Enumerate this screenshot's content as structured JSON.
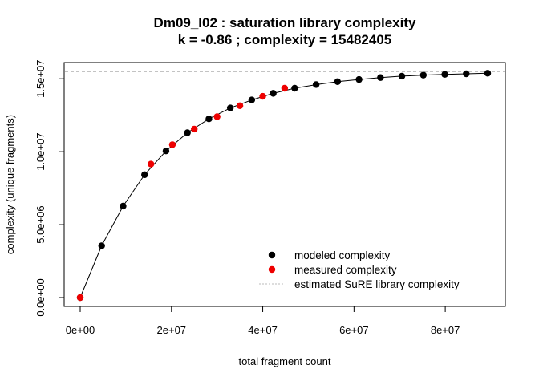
{
  "chart_data": {
    "type": "scatter",
    "title": "Dm09_I02 : saturation library complexity",
    "subtitle": "k = -0.86 ; complexity = 15482405",
    "xlabel": "total fragment count",
    "ylabel": "complexity (unique fragments)",
    "xlim": [
      0,
      90000000
    ],
    "ylim": [
      0,
      16000000
    ],
    "x_ticks": [
      {
        "value": 0,
        "label": "0e+00"
      },
      {
        "value": 20000000,
        "label": "2e+07"
      },
      {
        "value": 40000000,
        "label": "4e+07"
      },
      {
        "value": 60000000,
        "label": "6e+07"
      },
      {
        "value": 80000000,
        "label": "8e+07"
      }
    ],
    "y_ticks": [
      {
        "value": 0,
        "label": "0.0e+00"
      },
      {
        "value": 5000000,
        "label": "5.0e+06"
      },
      {
        "value": 10000000,
        "label": "1.0e+07"
      },
      {
        "value": 15000000,
        "label": "1.5e+07"
      }
    ],
    "grid": false,
    "legend_position": "bottom-right",
    "reference_line": {
      "name": "estimated SuRE library complexity",
      "y": 15482405,
      "color": "#bbbbbb",
      "style": "dotted"
    },
    "series": [
      {
        "name": "modeled complexity",
        "color": "#000000",
        "marker": "circle",
        "connect": true,
        "points": [
          {
            "x": 0,
            "y": 0
          },
          {
            "x": 4700000,
            "y": 3550000
          },
          {
            "x": 9400000,
            "y": 6270000
          },
          {
            "x": 14100000,
            "y": 8420000
          },
          {
            "x": 18800000,
            "y": 10050000
          },
          {
            "x": 23500000,
            "y": 11300000
          },
          {
            "x": 28200000,
            "y": 12250000
          },
          {
            "x": 32900000,
            "y": 13000000
          },
          {
            "x": 37600000,
            "y": 13550000
          },
          {
            "x": 42300000,
            "y": 14000000
          },
          {
            "x": 47000000,
            "y": 14350000
          },
          {
            "x": 51700000,
            "y": 14600000
          },
          {
            "x": 56400000,
            "y": 14800000
          },
          {
            "x": 61100000,
            "y": 14950000
          },
          {
            "x": 65800000,
            "y": 15080000
          },
          {
            "x": 70500000,
            "y": 15180000
          },
          {
            "x": 75200000,
            "y": 15250000
          },
          {
            "x": 79900000,
            "y": 15300000
          },
          {
            "x": 84600000,
            "y": 15340000
          },
          {
            "x": 89300000,
            "y": 15380000
          }
        ]
      },
      {
        "name": "measured complexity",
        "color": "#ee0000",
        "marker": "circle",
        "connect": false,
        "points": [
          {
            "x": 0,
            "y": 0
          },
          {
            "x": 15500000,
            "y": 9150000
          },
          {
            "x": 20200000,
            "y": 10480000
          },
          {
            "x": 25000000,
            "y": 11550000
          },
          {
            "x": 30000000,
            "y": 12400000
          },
          {
            "x": 35000000,
            "y": 13150000
          },
          {
            "x": 40000000,
            "y": 13800000
          },
          {
            "x": 44800000,
            "y": 14350000
          }
        ]
      }
    ],
    "legend_entries": [
      {
        "label": "modeled complexity",
        "symbol": "point",
        "color": "#000000"
      },
      {
        "label": "measured complexity",
        "symbol": "point",
        "color": "#ee0000"
      },
      {
        "label": "estimated SuRE library complexity",
        "symbol": "dotted-line",
        "color": "#bbbbbb"
      }
    ]
  }
}
